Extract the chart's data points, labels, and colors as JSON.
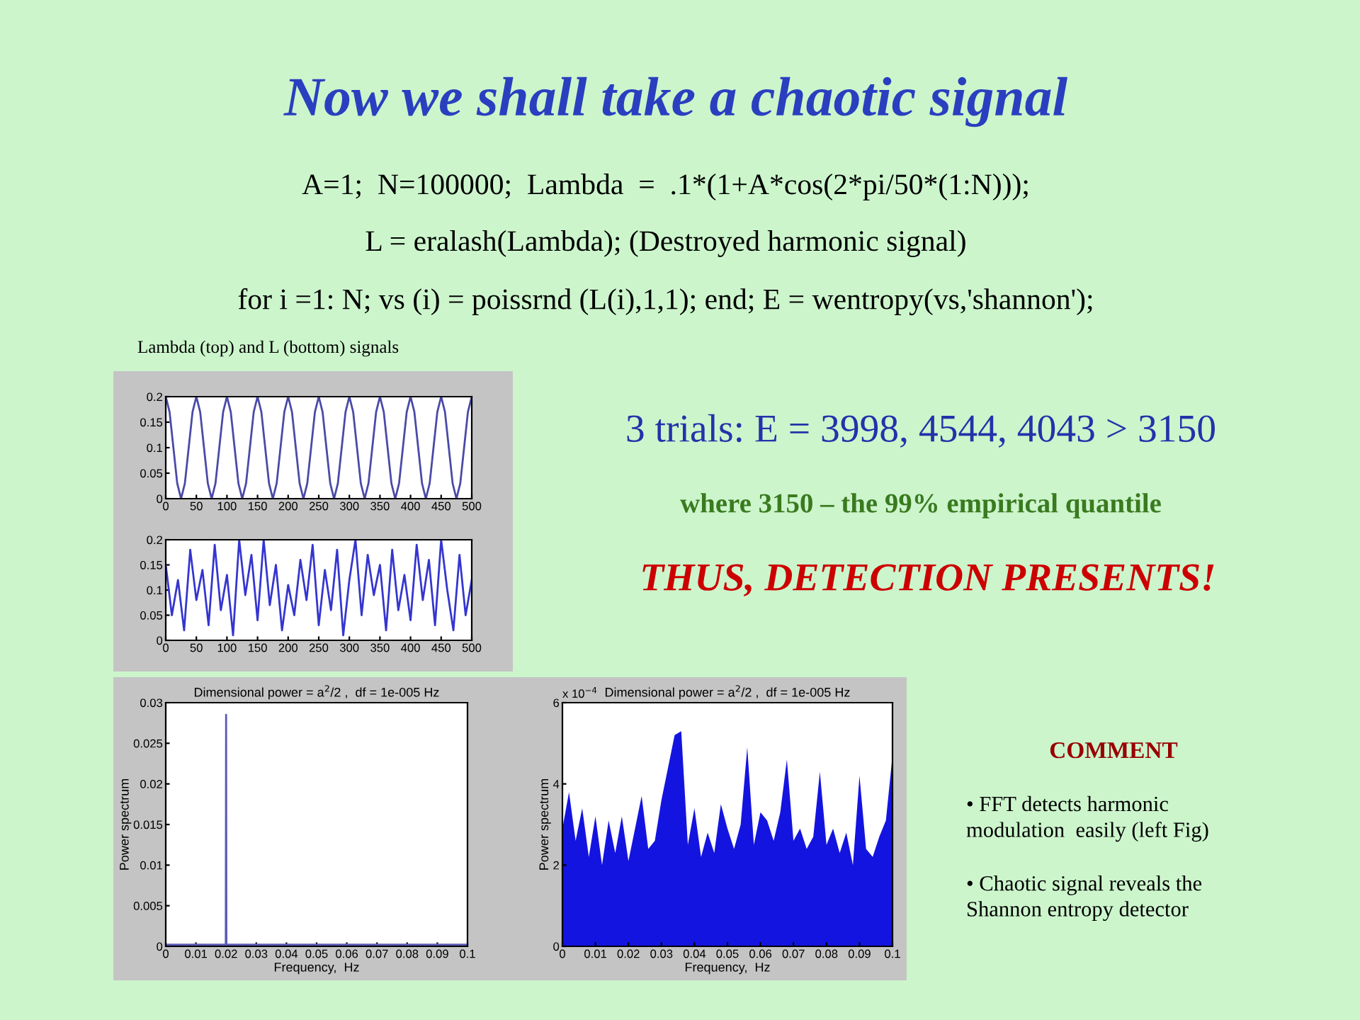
{
  "chart_data": [
    {
      "type": "other",
      "title": "Now we shall take a chaotic signal",
      "annotations": [
        "A=1;  N=100000;  Lambda  =  .1*(1+A*cos(2*pi/50*(1:N)));",
        "L = eralash(Lambda); (Destroyed harmonic signal)",
        "for i =1: N; vs (i) = poissrnd (L(i),1,1); end; E = wentropy(vs,'shannon');",
        "Lambda (top) and L (bottom) signals",
        "3 trials: E = 3998, 4544, 4043 > 3150",
        "where 3150 – the 99% empirical quantile",
        "THUS, DETECTION PRESENTS!",
        "COMMENT",
        "• FFT detects harmonic\nmodulation  easily (left Fig)",
        "• Chaotic signal reveals the\nShannon entropy detector"
      ]
    },
    {
      "type": "line",
      "xlim": [
        0,
        500
      ],
      "ylim": [
        0,
        0.2
      ],
      "xticks": [
        0,
        50,
        100,
        150,
        200,
        250,
        300,
        350,
        400,
        450,
        500
      ],
      "yticks": [
        0,
        0.05,
        0.1,
        0.15,
        0.2
      ],
      "x": [
        0,
        6.25,
        12.5,
        18.75,
        25,
        31.25,
        37.5,
        43.75,
        50,
        56.25,
        62.5,
        68.75,
        75,
        81.25,
        87.5,
        93.75,
        100,
        106.25,
        112.5,
        118.75,
        125,
        131.25,
        137.5,
        143.75,
        150,
        156.25,
        162.5,
        168.75,
        175,
        181.25,
        187.5,
        193.75,
        200,
        206.25,
        212.5,
        218.75,
        225,
        231.25,
        237.5,
        243.75,
        250,
        256.25,
        262.5,
        268.75,
        275,
        281.25,
        287.5,
        293.75,
        300,
        306.25,
        312.5,
        318.75,
        325,
        331.25,
        337.5,
        343.75,
        350,
        356.25,
        362.5,
        368.75,
        375,
        381.25,
        387.5,
        393.75,
        400,
        406.25,
        412.5,
        418.75,
        425,
        431.25,
        437.5,
        443.75,
        450,
        456.25,
        462.5,
        468.75,
        475,
        481.25,
        487.5,
        493.75,
        500
      ],
      "series": [
        {
          "color": "#4a4aa8",
          "values": [
            0.2,
            0.17,
            0.1,
            0.03,
            0,
            0.03,
            0.1,
            0.17,
            0.2,
            0.17,
            0.1,
            0.03,
            0,
            0.03,
            0.1,
            0.17,
            0.2,
            0.17,
            0.1,
            0.03,
            0,
            0.03,
            0.1,
            0.17,
            0.2,
            0.17,
            0.1,
            0.03,
            0,
            0.03,
            0.1,
            0.17,
            0.2,
            0.17,
            0.1,
            0.03,
            0,
            0.03,
            0.1,
            0.17,
            0.2,
            0.17,
            0.1,
            0.03,
            0,
            0.03,
            0.1,
            0.17,
            0.2,
            0.17,
            0.1,
            0.03,
            0,
            0.03,
            0.1,
            0.17,
            0.2,
            0.17,
            0.1,
            0.03,
            0,
            0.03,
            0.1,
            0.17,
            0.2,
            0.17,
            0.1,
            0.03,
            0,
            0.03,
            0.1,
            0.17,
            0.2,
            0.17,
            0.1,
            0.03,
            0,
            0.03,
            0.1,
            0.17,
            0.2
          ]
        }
      ]
    },
    {
      "type": "line",
      "xlim": [
        0,
        500
      ],
      "ylim": [
        0,
        0.2
      ],
      "xticks": [
        0,
        50,
        100,
        150,
        200,
        250,
        300,
        350,
        400,
        450,
        500
      ],
      "yticks": [
        0,
        0.05,
        0.1,
        0.15,
        0.2
      ],
      "x": [
        0,
        10,
        20,
        30,
        40,
        50,
        60,
        70,
        80,
        90,
        100,
        110,
        120,
        130,
        140,
        150,
        160,
        170,
        180,
        190,
        200,
        210,
        220,
        230,
        240,
        250,
        260,
        270,
        280,
        290,
        300,
        310,
        320,
        330,
        340,
        350,
        360,
        370,
        380,
        390,
        400,
        410,
        420,
        430,
        440,
        450,
        460,
        470,
        480,
        490,
        500
      ],
      "series": [
        {
          "color": "#3535d0",
          "values": [
            0.15,
            0.05,
            0.12,
            0.02,
            0.18,
            0.08,
            0.14,
            0.03,
            0.19,
            0.06,
            0.13,
            0.01,
            0.2,
            0.09,
            0.17,
            0.04,
            0.2,
            0.07,
            0.15,
            0.02,
            0.11,
            0.05,
            0.16,
            0.08,
            0.19,
            0.03,
            0.14,
            0.06,
            0.18,
            0.01,
            0.12,
            0.2,
            0.05,
            0.17,
            0.09,
            0.15,
            0.02,
            0.18,
            0.06,
            0.13,
            0.04,
            0.19,
            0.08,
            0.16,
            0.03,
            0.2,
            0.1,
            0.02,
            0.17,
            0.05,
            0.12
          ]
        }
      ]
    },
    {
      "type": "line",
      "title": "Dimensional power = a$^{2}$/2 ,  df = 1e-005 Hz",
      "xlabel": "Frequency,  Hz",
      "ylabel": "Power spectrum",
      "xlim": [
        0,
        0.1
      ],
      "ylim": [
        0,
        0.03
      ],
      "xticks": [
        0,
        0.01,
        0.02,
        0.03,
        0.04,
        0.05,
        0.06,
        0.07,
        0.08,
        0.09,
        0.1
      ],
      "yticks": [
        0,
        0.005,
        0.01,
        0.015,
        0.02,
        0.025,
        0.03
      ],
      "x": [
        0,
        0.0199,
        0.02,
        0.0201,
        0.1
      ],
      "series": [
        {
          "color": "#5a5ab8",
          "values": [
            0.0002,
            0.0002,
            0.0285,
            0.0002,
            0.0002
          ]
        }
      ]
    },
    {
      "type": "area",
      "title": "Dimensional power = a$^{2}$/2 ,  df = 1e-005 Hz",
      "xlabel": "Frequency,  Hz",
      "ylabel": "Power spectrum",
      "annotations": [
        "x 10$^{−4}$"
      ],
      "xlim": [
        0,
        0.1
      ],
      "ylim": [
        0,
        6
      ],
      "xticks": [
        0,
        0.01,
        0.02,
        0.03,
        0.04,
        0.05,
        0.06,
        0.07,
        0.08,
        0.09,
        0.1
      ],
      "yticks": [
        0,
        2,
        4,
        6
      ],
      "x": [
        0,
        0.002,
        0.004,
        0.006,
        0.008,
        0.01,
        0.012,
        0.014,
        0.016,
        0.018,
        0.02,
        0.022,
        0.024,
        0.026,
        0.028,
        0.03,
        0.032,
        0.034,
        0.036,
        0.038,
        0.04,
        0.042,
        0.044,
        0.046,
        0.048,
        0.05,
        0.052,
        0.054,
        0.056,
        0.058,
        0.06,
        0.062,
        0.064,
        0.066,
        0.068,
        0.07,
        0.072,
        0.074,
        0.076,
        0.078,
        0.08,
        0.082,
        0.084,
        0.086,
        0.088,
        0.09,
        0.092,
        0.094,
        0.096,
        0.098,
        0.1
      ],
      "series": [
        {
          "color": "#1414e0",
          "values": [
            2.9,
            3.8,
            2.6,
            3.4,
            2.2,
            3.2,
            2.0,
            3.1,
            2.3,
            3.2,
            2.1,
            2.9,
            3.7,
            2.4,
            2.6,
            3.6,
            4.4,
            5.2,
            5.3,
            2.5,
            3.4,
            2.2,
            2.8,
            2.3,
            3.5,
            2.9,
            2.4,
            3.0,
            4.9,
            2.5,
            3.3,
            3.1,
            2.6,
            3.3,
            4.6,
            2.6,
            2.9,
            2.4,
            2.7,
            4.3,
            2.5,
            2.9,
            2.3,
            2.8,
            2.0,
            4.2,
            2.4,
            2.2,
            2.7,
            3.1,
            4.7
          ]
        }
      ]
    }
  ]
}
